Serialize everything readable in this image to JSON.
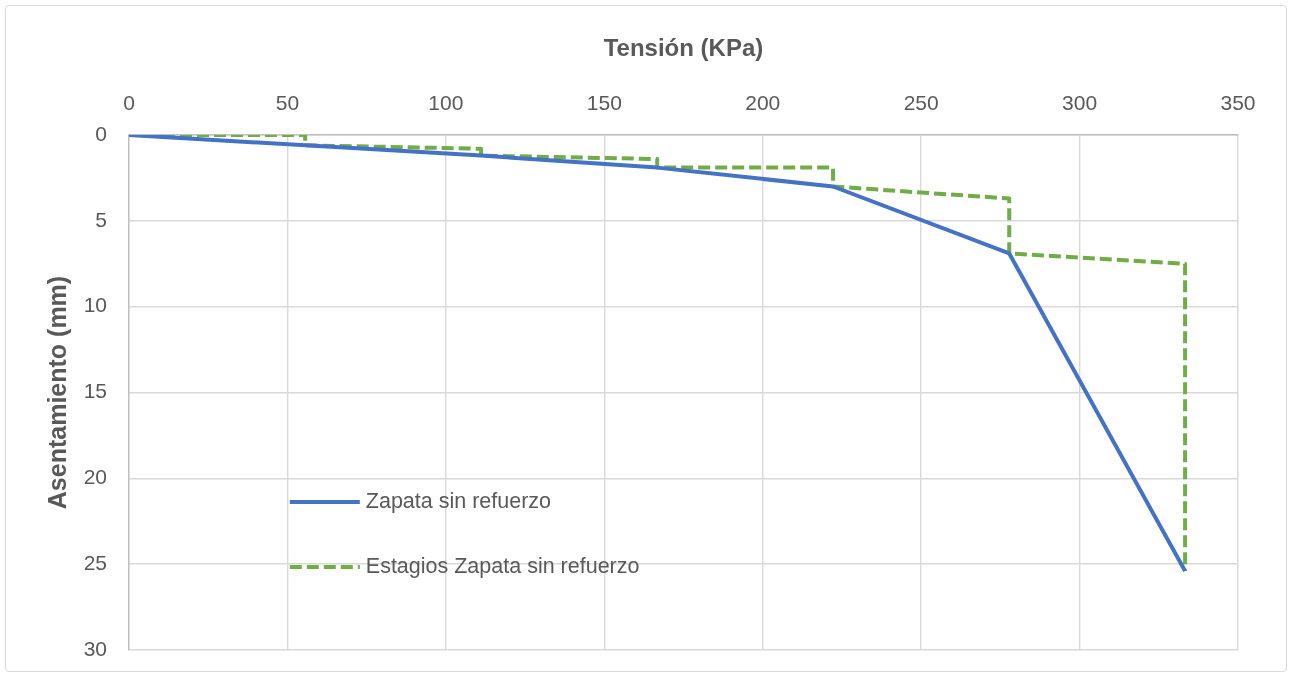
{
  "chart_data": {
    "type": "line",
    "xlabel": "Tensión (KPa)",
    "ylabel": "Asentamiento (mm)",
    "xlim": [
      0,
      350
    ],
    "xticks": [
      0,
      50,
      100,
      150,
      200,
      250,
      300,
      350
    ],
    "ylim": [
      30,
      0
    ],
    "yticks": [
      0,
      5,
      10,
      15,
      20,
      25,
      30
    ],
    "grid": true,
    "legend": "bottom left",
    "marker": "none",
    "series": [
      {
        "name": "Zapata sin refuerzo",
        "color": "#4472c4",
        "line_style": "solid",
        "x": [
          0,
          55.6,
          111.1,
          166.7,
          222.2,
          277.8,
          333.3
        ],
        "values": [
          0,
          0.6,
          1.2,
          1.9,
          3.0,
          6.9,
          25.4
        ]
      },
      {
        "name": "Estagios Zapata sin refuerzo",
        "color": "#70ad47",
        "line_style": "dashed",
        "x": [
          0,
          55.6,
          55.6,
          111.1,
          111.1,
          166.7,
          166.7,
          222.2,
          222.2,
          277.8,
          277.8,
          333.3,
          333.3
        ],
        "values": [
          0,
          0,
          0.6,
          0.8,
          1.2,
          1.4,
          1.9,
          1.9,
          3.0,
          3.7,
          6.9,
          7.5,
          25.4
        ]
      }
    ]
  }
}
